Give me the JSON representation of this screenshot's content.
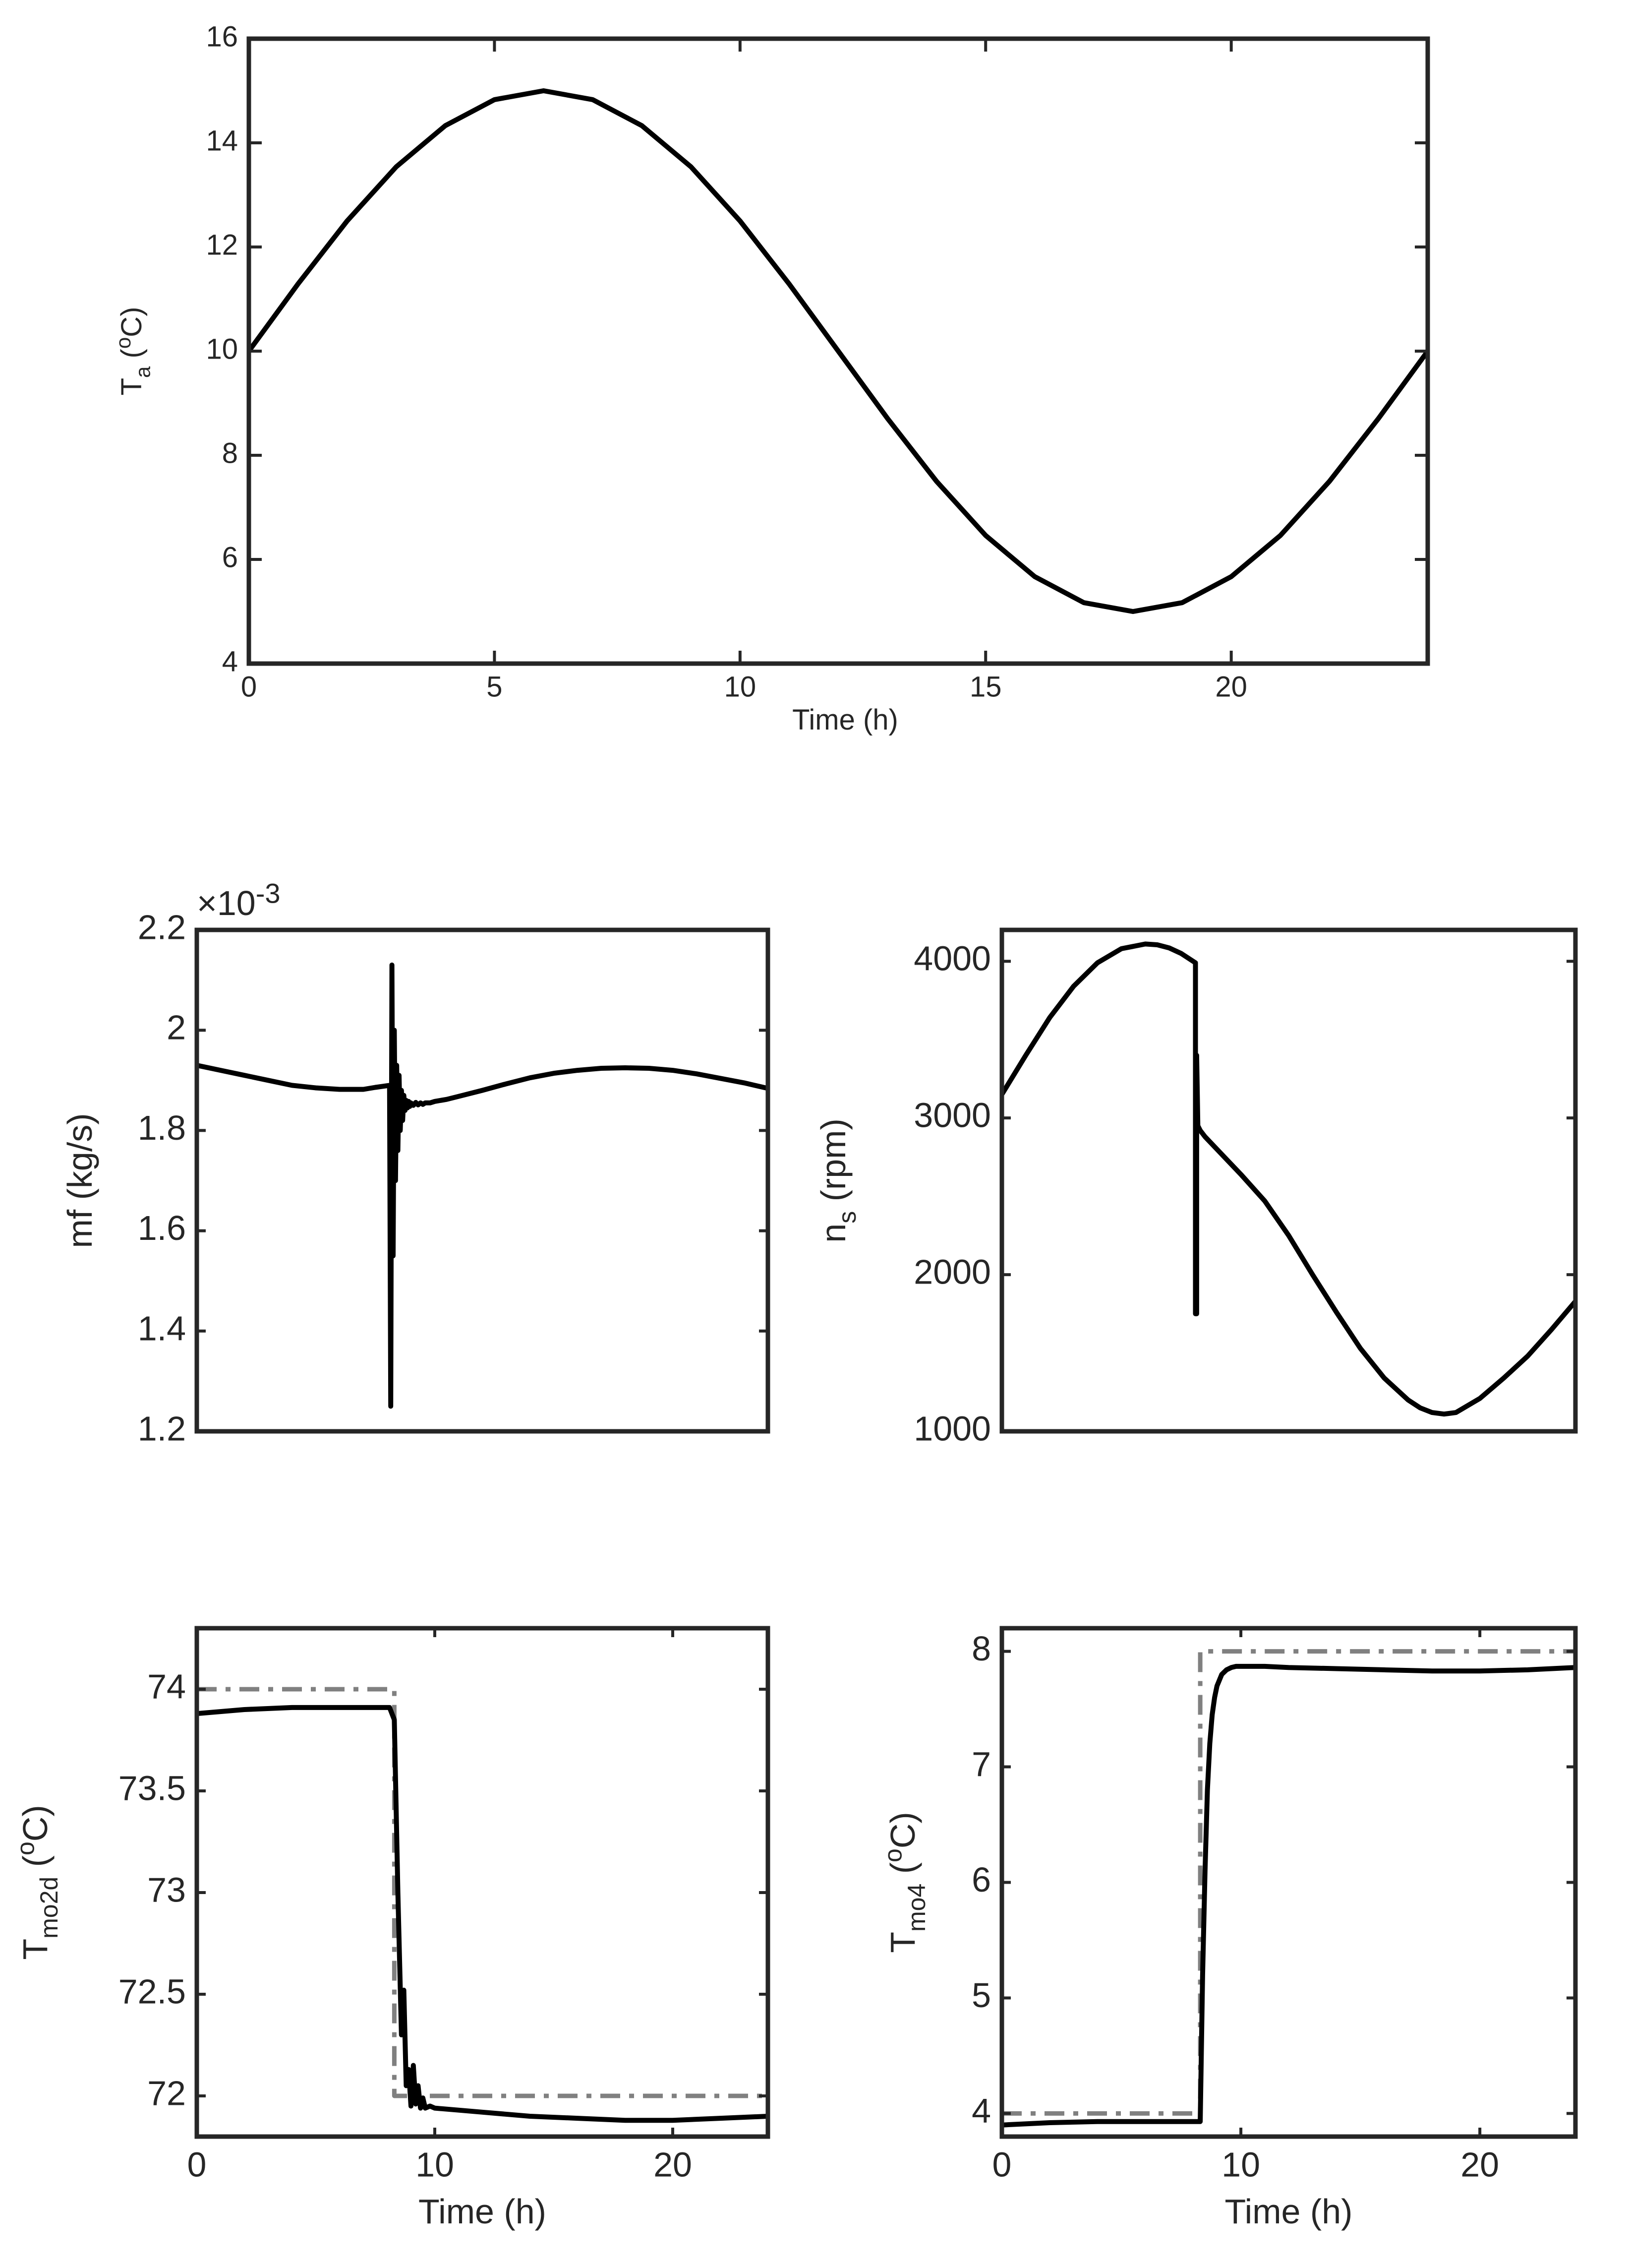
{
  "chart_data": [
    {
      "id": "ambient-temperature",
      "type": "line",
      "xlabel": "Time (h)",
      "ylabel_parts": [
        "T",
        "a",
        " (",
        "o",
        "C)"
      ],
      "xlim": [
        0,
        24
      ],
      "ylim": [
        4,
        16
      ],
      "xticks": [
        0,
        5,
        10,
        15,
        20
      ],
      "xtick_labels": [
        "0",
        "5",
        "10",
        "15",
        "20"
      ],
      "yticks": [
        4,
        6,
        8,
        10,
        12,
        14,
        16
      ],
      "ytick_labels": [
        "4",
        "6",
        "8",
        "10",
        "12",
        "14",
        "16"
      ],
      "grid": false,
      "series": [
        {
          "style": "solid",
          "color": "#000000",
          "x": [
            0,
            1,
            2,
            3,
            4,
            5,
            6,
            7,
            8,
            9,
            10,
            11,
            12,
            13,
            14,
            15,
            16,
            17,
            18,
            19,
            20,
            21,
            22,
            23,
            24
          ],
          "y": [
            10.0,
            11.29,
            12.5,
            13.54,
            14.33,
            14.83,
            15.0,
            14.83,
            14.33,
            13.54,
            12.5,
            11.29,
            10.0,
            8.71,
            7.5,
            6.46,
            5.67,
            5.17,
            5.0,
            5.17,
            5.67,
            6.46,
            7.5,
            8.71,
            10.0
          ]
        }
      ]
    },
    {
      "id": "mass-flow",
      "type": "line",
      "ylabel": "mf (kg/s)",
      "exponent_parts": [
        "×10",
        "-3"
      ],
      "xlim": [
        0,
        24
      ],
      "ylim": [
        1.2,
        2.2
      ],
      "xticks": [],
      "yticks": [
        1.2,
        1.4,
        1.6,
        1.8,
        2.0,
        2.2
      ],
      "ytick_labels": [
        "1.2",
        "1.4",
        "1.6",
        "1.8",
        "2",
        "2.2"
      ],
      "grid": false,
      "series": [
        {
          "style": "solid",
          "color": "#000000",
          "x": [
            0,
            1,
            2,
            3,
            4,
            5,
            6,
            7,
            7.5,
            8.1,
            8.15,
            8.2,
            8.25,
            8.3,
            8.35,
            8.4,
            8.45,
            8.5,
            8.55,
            8.6,
            8.65,
            8.7,
            8.75,
            8.8,
            8.85,
            8.9,
            8.95,
            9.0,
            9.1,
            9.2,
            9.3,
            9.4,
            9.5,
            9.6,
            9.8,
            10.0,
            10.5,
            11,
            12,
            13,
            14,
            15,
            16,
            17,
            18,
            19,
            20,
            21,
            22,
            23,
            24
          ],
          "y": [
            1.93,
            1.92,
            1.91,
            1.9,
            1.89,
            1.885,
            1.882,
            1.882,
            1.886,
            1.89,
            1.25,
            2.13,
            1.55,
            2.0,
            1.7,
            1.93,
            1.76,
            1.91,
            1.8,
            1.88,
            1.82,
            1.87,
            1.84,
            1.86,
            1.845,
            1.858,
            1.848,
            1.855,
            1.85,
            1.856,
            1.851,
            1.855,
            1.852,
            1.855,
            1.855,
            1.858,
            1.862,
            1.868,
            1.88,
            1.893,
            1.905,
            1.914,
            1.92,
            1.924,
            1.925,
            1.924,
            1.92,
            1.913,
            1.904,
            1.895,
            1.884
          ]
        }
      ]
    },
    {
      "id": "speed",
      "type": "line",
      "ylabel_parts": [
        "n",
        "s",
        " (rpm)"
      ],
      "xlim": [
        0,
        24
      ],
      "ylim": [
        1000,
        4200
      ],
      "xticks": [],
      "yticks": [
        1000,
        2000,
        3000,
        4000
      ],
      "ytick_labels": [
        "1000",
        "2000",
        "3000",
        "4000"
      ],
      "grid": false,
      "series": [
        {
          "style": "solid",
          "color": "#000000",
          "x": [
            0,
            1,
            2,
            3,
            4,
            5,
            6,
            6.5,
            7,
            7.5,
            8.1,
            8.1,
            8.15,
            8.15,
            8.2,
            8.3,
            8.5,
            9,
            10,
            11,
            12,
            13,
            14,
            15,
            16,
            17,
            17.5,
            18,
            18.5,
            19,
            20,
            21,
            22,
            23,
            24
          ],
          "y": [
            3150,
            3400,
            3640,
            3840,
            3990,
            4080,
            4110,
            4105,
            4085,
            4050,
            3990,
            1750,
            1750,
            3400,
            2950,
            2920,
            2880,
            2800,
            2640,
            2470,
            2250,
            2000,
            1760,
            1530,
            1340,
            1200,
            1150,
            1120,
            1110,
            1120,
            1210,
            1340,
            1480,
            1650,
            1830
          ]
        }
      ]
    },
    {
      "id": "temperature-2d",
      "type": "line",
      "xlabel": "Time (h)",
      "ylabel_parts": [
        "T",
        "mo2d",
        " (",
        "o",
        "C)"
      ],
      "xlim": [
        0,
        24
      ],
      "ylim": [
        71.8,
        74.3
      ],
      "xticks": [
        0,
        10,
        20
      ],
      "xtick_labels": [
        "0",
        "10",
        "20"
      ],
      "yticks": [
        72,
        72.5,
        73,
        73.5,
        74
      ],
      "ytick_labels": [
        "72",
        "72.5",
        "73",
        "73.5",
        "74"
      ],
      "grid": false,
      "series": [
        {
          "style": "dashdot",
          "color": "#808080",
          "x": [
            0,
            8.3,
            8.3,
            24
          ],
          "y": [
            74.0,
            74.0,
            72.0,
            72.0
          ]
        },
        {
          "style": "solid",
          "color": "#000000",
          "x": [
            0,
            2,
            4,
            6,
            8.1,
            8.3,
            8.45,
            8.6,
            8.7,
            8.8,
            8.9,
            9.0,
            9.1,
            9.2,
            9.3,
            9.4,
            9.5,
            9.6,
            9.8,
            10,
            11,
            12,
            14,
            16,
            18,
            20,
            22,
            24
          ],
          "y": [
            73.88,
            73.9,
            73.91,
            73.91,
            73.91,
            73.85,
            73.0,
            72.3,
            72.52,
            72.05,
            72.13,
            71.95,
            72.15,
            71.96,
            72.05,
            71.94,
            71.99,
            71.94,
            71.95,
            71.94,
            71.93,
            71.92,
            71.9,
            71.89,
            71.88,
            71.88,
            71.89,
            71.9
          ]
        }
      ]
    },
    {
      "id": "temperature-4",
      "type": "line",
      "xlabel": "Time (h)",
      "ylabel_parts": [
        "T",
        "mo4",
        " (",
        "o",
        "C)"
      ],
      "xlim": [
        0,
        24
      ],
      "ylim": [
        3.8,
        8.2
      ],
      "xticks": [
        0,
        10,
        20
      ],
      "xtick_labels": [
        "0",
        "10",
        "20"
      ],
      "yticks": [
        4,
        5,
        6,
        7,
        8
      ],
      "ytick_labels": [
        "4",
        "5",
        "6",
        "7",
        "8"
      ],
      "grid": false,
      "series": [
        {
          "style": "dashdot",
          "color": "#808080",
          "x": [
            0,
            8.3,
            8.3,
            24
          ],
          "y": [
            4.0,
            4.0,
            8.0,
            8.0
          ]
        },
        {
          "style": "solid",
          "color": "#000000",
          "x": [
            0,
            2,
            4,
            6,
            8.3,
            8.4,
            8.5,
            8.6,
            8.7,
            8.8,
            8.9,
            9.0,
            9.2,
            9.4,
            9.6,
            9.8,
            10,
            11,
            12,
            14,
            16,
            18,
            20,
            22,
            24
          ],
          "y": [
            3.9,
            3.92,
            3.93,
            3.93,
            3.93,
            5.2,
            6.1,
            6.8,
            7.2,
            7.45,
            7.6,
            7.7,
            7.8,
            7.84,
            7.86,
            7.87,
            7.87,
            7.87,
            7.86,
            7.85,
            7.84,
            7.83,
            7.83,
            7.84,
            7.86
          ]
        }
      ]
    }
  ]
}
